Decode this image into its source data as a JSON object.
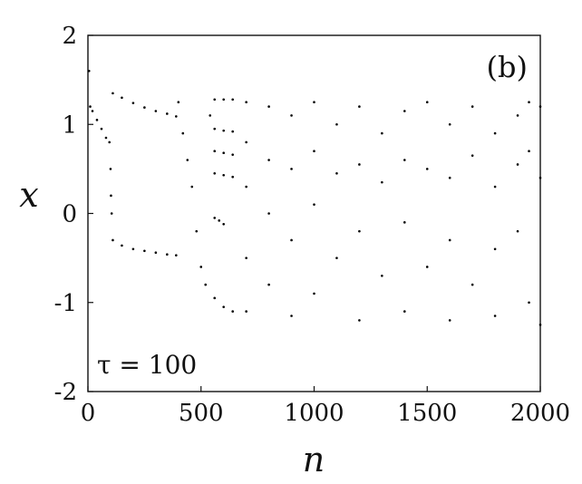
{
  "chart_data": {
    "type": "scatter",
    "title": "",
    "xlabel": "n",
    "ylabel": "x",
    "panel_label": "(b)",
    "annotation": "τ = 100",
    "xlim": [
      0,
      2000
    ],
    "ylim": [
      -2,
      2
    ],
    "xticks": [
      "0",
      "500",
      "1000",
      "1500",
      "2000"
    ],
    "yticks": [
      "2",
      "1",
      "0",
      "-1",
      "-2"
    ],
    "grid": false,
    "legend": "none",
    "point_color": "#000000",
    "series": [
      {
        "values": [
          [
            5,
            1.6
          ],
          [
            10,
            1.2
          ],
          [
            20,
            1.15
          ],
          [
            40,
            1.05
          ],
          [
            60,
            0.95
          ],
          [
            80,
            0.85
          ],
          [
            95,
            0.8
          ],
          [
            100,
            0.5
          ],
          [
            102,
            0.2
          ],
          [
            105,
            0
          ],
          [
            110,
            1.35
          ],
          [
            150,
            1.3
          ],
          [
            200,
            1.24
          ],
          [
            250,
            1.19
          ],
          [
            300,
            1.15
          ],
          [
            350,
            1.12
          ],
          [
            390,
            1.09
          ],
          [
            110,
            -0.3
          ],
          [
            150,
            -0.36
          ],
          [
            200,
            -0.4
          ],
          [
            250,
            -0.42
          ],
          [
            300,
            -0.44
          ],
          [
            350,
            -0.46
          ],
          [
            390,
            -0.47
          ],
          [
            400,
            1.25
          ],
          [
            420,
            0.9
          ],
          [
            440,
            0.6
          ],
          [
            460,
            0.3
          ],
          [
            480,
            -0.2
          ],
          [
            500,
            -0.6
          ],
          [
            520,
            -0.8
          ],
          [
            540,
            1.1
          ],
          [
            560,
            1.28
          ],
          [
            600,
            1.28
          ],
          [
            640,
            1.28
          ],
          [
            560,
            0.95
          ],
          [
            600,
            0.93
          ],
          [
            640,
            0.92
          ],
          [
            560,
            0.7
          ],
          [
            600,
            0.68
          ],
          [
            640,
            0.66
          ],
          [
            560,
            0.45
          ],
          [
            600,
            0.43
          ],
          [
            640,
            0.41
          ],
          [
            560,
            -0.05
          ],
          [
            580,
            -0.08
          ],
          [
            600,
            -0.12
          ],
          [
            560,
            -0.95
          ],
          [
            600,
            -1.05
          ],
          [
            640,
            -1.1
          ],
          [
            700,
            1.25
          ],
          [
            700,
            0.8
          ],
          [
            700,
            0.3
          ],
          [
            700,
            -0.5
          ],
          [
            700,
            -1.1
          ],
          [
            800,
            1.2
          ],
          [
            800,
            0.6
          ],
          [
            800,
            0.0
          ],
          [
            800,
            -0.8
          ],
          [
            900,
            1.1
          ],
          [
            900,
            0.5
          ],
          [
            900,
            -0.3
          ],
          [
            900,
            -1.15
          ],
          [
            1000,
            1.25
          ],
          [
            1000,
            0.7
          ],
          [
            1000,
            0.1
          ],
          [
            1000,
            -0.9
          ],
          [
            1100,
            1.0
          ],
          [
            1100,
            0.45
          ],
          [
            1100,
            -0.5
          ],
          [
            1200,
            1.2
          ],
          [
            1200,
            0.55
          ],
          [
            1200,
            -0.2
          ],
          [
            1200,
            -1.2
          ],
          [
            1300,
            0.9
          ],
          [
            1300,
            0.35
          ],
          [
            1300,
            -0.7
          ],
          [
            1400,
            1.15
          ],
          [
            1400,
            0.6
          ],
          [
            1400,
            -0.1
          ],
          [
            1400,
            -1.1
          ],
          [
            1500,
            1.25
          ],
          [
            1500,
            0.5
          ],
          [
            1500,
            -0.6
          ],
          [
            1600,
            1.0
          ],
          [
            1600,
            0.4
          ],
          [
            1600,
            -0.3
          ],
          [
            1600,
            -1.2
          ],
          [
            1700,
            1.2
          ],
          [
            1700,
            0.65
          ],
          [
            1700,
            -0.8
          ],
          [
            1800,
            0.9
          ],
          [
            1800,
            0.3
          ],
          [
            1800,
            -0.4
          ],
          [
            1800,
            -1.15
          ],
          [
            1900,
            1.1
          ],
          [
            1900,
            0.55
          ],
          [
            1900,
            -0.2
          ],
          [
            1950,
            1.25
          ],
          [
            1950,
            0.7
          ],
          [
            1950,
            -1.0
          ],
          [
            2000,
            1.2
          ],
          [
            2000,
            0.4
          ],
          [
            2000,
            -1.25
          ]
        ]
      }
    ]
  }
}
